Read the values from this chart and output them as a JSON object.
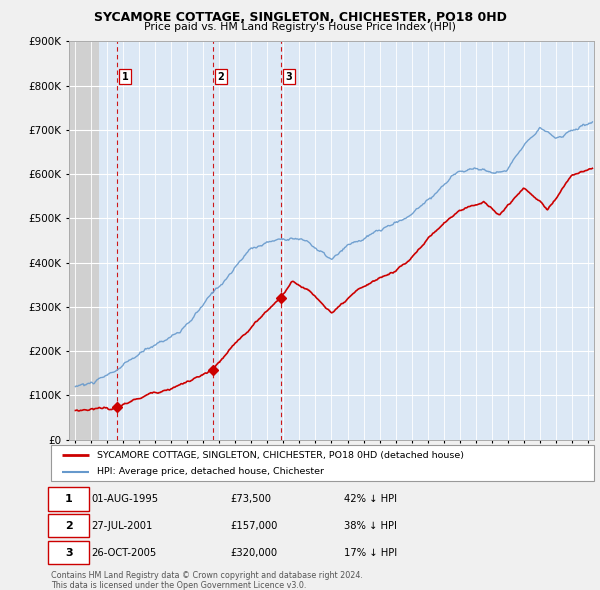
{
  "title": "SYCAMORE COTTAGE, SINGLETON, CHICHESTER, PO18 0HD",
  "subtitle": "Price paid vs. HM Land Registry's House Price Index (HPI)",
  "legend_property": "SYCAMORE COTTAGE, SINGLETON, CHICHESTER, PO18 0HD (detached house)",
  "legend_hpi": "HPI: Average price, detached house, Chichester",
  "transactions": [
    {
      "num": 1,
      "date": "01-AUG-1995",
      "price": "£73,500",
      "pct": "42% ↓ HPI",
      "year": 1995.58
    },
    {
      "num": 2,
      "date": "27-JUL-2001",
      "price": "£157,000",
      "pct": "38% ↓ HPI",
      "year": 2001.57
    },
    {
      "num": 3,
      "date": "26-OCT-2005",
      "price": "£320,000",
      "pct": "17% ↓ HPI",
      "year": 2005.82
    }
  ],
  "transaction_prices": [
    73500,
    157000,
    320000
  ],
  "transaction_years": [
    1995.58,
    2001.57,
    2005.82
  ],
  "property_color": "#cc0000",
  "hpi_color": "#6699cc",
  "background_color": "#f0f0f0",
  "plot_bg_color": "#dce8f5",
  "hatch_color": "#c8c8c8",
  "grid_color": "#ffffff",
  "ylim": [
    0,
    900000
  ],
  "yticks": [
    0,
    100000,
    200000,
    300000,
    400000,
    500000,
    600000,
    700000,
    800000,
    900000
  ],
  "xlim_start": 1992.6,
  "xlim_end": 2025.4,
  "hatch_end_year": 1994.5,
  "footer": "Contains HM Land Registry data © Crown copyright and database right 2024.\nThis data is licensed under the Open Government Licence v3.0."
}
